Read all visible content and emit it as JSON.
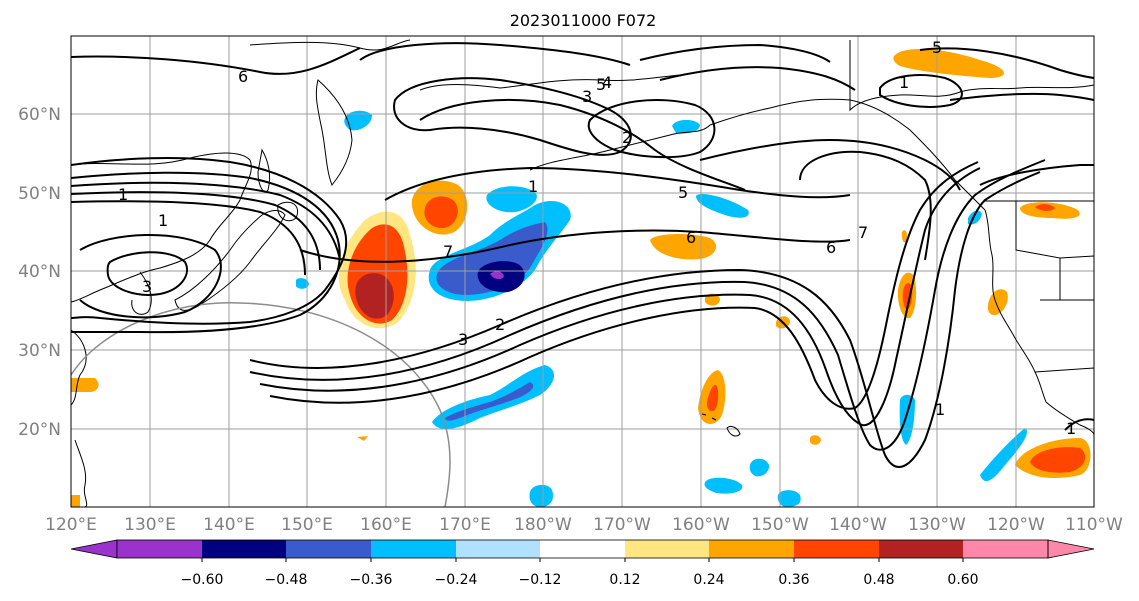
{
  "title": "2023011000 F072",
  "map": {
    "lon_labels": [
      "120°E",
      "130°E",
      "140°E",
      "150°E",
      "160°E",
      "170°E",
      "180°W",
      "170°W",
      "160°W",
      "150°W",
      "140°W",
      "130°W",
      "120°W",
      "110°W"
    ],
    "lat_labels": [
      "60°N",
      "50°N",
      "40°N",
      "30°N",
      "20°N"
    ],
    "contour_labels": [
      "6",
      "5",
      "4",
      "3",
      "2",
      "1",
      "7",
      "3",
      "2",
      "1",
      "1",
      "3",
      "5",
      "6",
      "6",
      "7",
      "1",
      "1",
      "5",
      "1"
    ]
  },
  "colorbar": {
    "tick_labels": [
      "−0.60",
      "−0.48",
      "−0.36",
      "−0.24",
      "−0.12",
      "0.12",
      "0.24",
      "0.36",
      "0.48",
      "0.60"
    ],
    "colors": [
      "#9933cc",
      "#000080",
      "#3a5bcc",
      "#00bfff",
      "#b0e2ff",
      "#ffffff",
      "#ffe680",
      "#ffa500",
      "#ff4500",
      "#b22222",
      "#ff88aa"
    ]
  },
  "colors": {
    "purple": "#9933cc",
    "navy": "#000080",
    "blue": "#3a5bcc",
    "sky": "#00bfff",
    "light_blue": "#b0e2ff",
    "yellow": "#ffe680",
    "orange": "#ffa500",
    "red_orange": "#ff4500",
    "dark_red": "#b22222",
    "pink": "#ff88aa"
  }
}
